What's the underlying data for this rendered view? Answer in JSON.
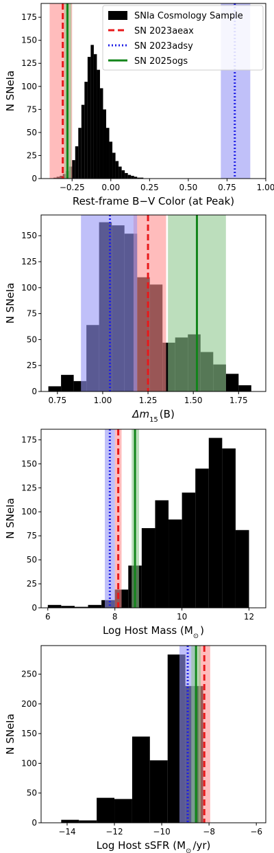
{
  "chart_data": [
    {
      "type": "bar",
      "xlabel": "Rest-frame B−V Color (at Peak)",
      "ylabel": "N SNeIa",
      "xlim": [
        -0.45,
        1.0
      ],
      "ylim": [
        0,
        190
      ],
      "xticks": [
        -0.25,
        0.0,
        0.25,
        0.5,
        0.75,
        1.0
      ],
      "xtick_labels": [
        "−0.25",
        "0.00",
        "0.25",
        "0.50",
        "0.75",
        "1.00"
      ],
      "yticks": [
        0,
        25,
        50,
        75,
        100,
        125,
        150,
        175
      ],
      "bin_edges": [
        -0.37,
        -0.35,
        -0.33,
        -0.31,
        -0.29,
        -0.27,
        -0.25,
        -0.23,
        -0.21,
        -0.19,
        -0.17,
        -0.15,
        -0.13,
        -0.11,
        -0.09,
        -0.07,
        -0.05,
        -0.03,
        -0.01,
        0.01,
        0.03,
        0.05,
        0.07,
        0.09,
        0.11,
        0.13,
        0.15,
        0.17,
        0.19,
        0.21
      ],
      "counts": [
        1,
        2,
        3,
        5,
        8,
        13,
        20,
        35,
        55,
        80,
        105,
        132,
        145,
        135,
        118,
        98,
        75,
        55,
        40,
        28,
        19,
        13,
        9,
        6,
        4,
        3,
        2,
        1,
        1
      ],
      "markers": [
        {
          "name": "SN 2023aeax",
          "value": -0.31,
          "band": [
            -0.395,
            -0.25
          ],
          "style": "dashed",
          "color": "#e8191b",
          "band_color": "#ff8f8f"
        },
        {
          "name": "SN 2023adsy",
          "value": 0.8,
          "band": [
            0.71,
            0.9
          ],
          "style": "dotted",
          "color": "#1f1fe6",
          "band_color": "#9696f5"
        },
        {
          "name": "SN 2025ogs",
          "value": -0.28,
          "band": [
            -0.3,
            -0.255
          ],
          "style": "solid",
          "color": "#12851a",
          "band_color": "#90c890"
        }
      ],
      "legend": {
        "position": "top-right",
        "entries": [
          "SNIa Cosmology Sample",
          "SN 2023aeax",
          "SN 2023adsy",
          "SN 2025ogs"
        ]
      }
    },
    {
      "type": "bar",
      "xlabel": "Δm",
      "xlabel_sub": "15",
      "xlabel_suffix": "(B)",
      "ylabel": "N SNeIa",
      "xlim": [
        0.66,
        1.9
      ],
      "ylim": [
        0,
        170
      ],
      "xticks": [
        0.75,
        1.0,
        1.25,
        1.5,
        1.75
      ],
      "xtick_labels": [
        "0.75",
        "1.00",
        "1.25",
        "1.50",
        "1.75"
      ],
      "yticks": [
        0,
        25,
        50,
        75,
        100,
        125,
        150
      ],
      "bin_edges": [
        0.7,
        0.77,
        0.84,
        0.91,
        0.98,
        1.05,
        1.12,
        1.19,
        1.26,
        1.33,
        1.4,
        1.47,
        1.54,
        1.61,
        1.68,
        1.75,
        1.82
      ],
      "counts": [
        5,
        16,
        10,
        64,
        163,
        160,
        152,
        110,
        103,
        47,
        52,
        55,
        38,
        26,
        17,
        6
      ],
      "markers": [
        {
          "name": "SN 2023aeax",
          "value": 1.25,
          "band": [
            1.17,
            1.35
          ],
          "style": "dashed",
          "color": "#e8191b",
          "band_color": "#ff8f8f"
        },
        {
          "name": "SN 2023adsy",
          "value": 1.04,
          "band": [
            0.88,
            1.19
          ],
          "style": "dotted",
          "color": "#1f1fe6",
          "band_color": "#9696f5"
        },
        {
          "name": "SN 2025ogs",
          "value": 1.52,
          "band": [
            1.36,
            1.68
          ],
          "style": "solid",
          "color": "#12851a",
          "band_color": "#90c890"
        }
      ]
    },
    {
      "type": "bar",
      "xlabel": "Log Host Mass (M",
      "xlabel_sub": "⊙",
      "xlabel_suffix": ")",
      "ylabel": "N SNeIa",
      "xlim": [
        5.8,
        12.5
      ],
      "ylim": [
        0,
        186
      ],
      "xticks": [
        6,
        8,
        10,
        12
      ],
      "xtick_labels": [
        "6",
        "8",
        "10",
        "12"
      ],
      "yticks": [
        0,
        25,
        50,
        75,
        100,
        125,
        150,
        175
      ],
      "bin_edges": [
        6.0,
        6.4,
        6.8,
        7.2,
        7.6,
        8.0,
        8.4,
        8.8,
        9.2,
        9.6,
        10.0,
        10.4,
        10.8,
        11.2,
        11.6,
        12.0
      ],
      "counts": [
        3,
        2,
        1,
        3,
        8,
        19,
        44,
        83,
        112,
        92,
        120,
        145,
        177,
        166,
        81
      ],
      "markers": [
        {
          "name": "SN 2023aeax",
          "value": 8.1,
          "band": [
            8.0,
            8.2
          ],
          "style": "dashed",
          "color": "#e8191b",
          "band_color": "#ff8f8f"
        },
        {
          "name": "SN 2023adsy",
          "value": 7.85,
          "band": [
            7.7,
            8.0
          ],
          "style": "dotted",
          "color": "#1f1fe6",
          "band_color": "#9696f5"
        },
        {
          "name": "SN 2025ogs",
          "value": 8.6,
          "band": [
            8.5,
            8.72
          ],
          "style": "solid",
          "color": "#12851a",
          "band_color": "#90c890"
        }
      ]
    },
    {
      "type": "bar",
      "xlabel": "Log Host sSFR (M",
      "xlabel_sub": "⊙",
      "xlabel_suffix": "/yr)",
      "ylabel": "N SNeIa",
      "xlim": [
        -15.1,
        -5.6
      ],
      "ylim": [
        0,
        298
      ],
      "xticks": [
        -14,
        -12,
        -10,
        -8,
        -6
      ],
      "xtick_labels": [
        "−14",
        "−12",
        "−10",
        "−8",
        "−6"
      ],
      "yticks": [
        0,
        50,
        100,
        150,
        200,
        250
      ],
      "bin_edges": [
        -14.25,
        -13.5,
        -12.75,
        -12.0,
        -11.25,
        -10.5,
        -9.75,
        -9.0,
        -8.25
      ],
      "counts": [
        5,
        4,
        42,
        40,
        145,
        105,
        283,
        230
      ],
      "markers": [
        {
          "name": "SN 2023aeax",
          "value": -8.2,
          "band": [
            -8.45,
            -7.95
          ],
          "style": "dashed",
          "color": "#e8191b",
          "band_color": "#ff8f8f"
        },
        {
          "name": "SN 2023adsy",
          "value": -8.9,
          "band": [
            -9.25,
            -8.6
          ],
          "style": "dotted",
          "color": "#1f1fe6",
          "band_color": "#9696f5"
        },
        {
          "name": "SN 2025ogs",
          "value": -8.55,
          "band": [
            -8.75,
            -8.35
          ],
          "style": "solid",
          "color": "#12851a",
          "band_color": "#90c890"
        }
      ]
    }
  ]
}
